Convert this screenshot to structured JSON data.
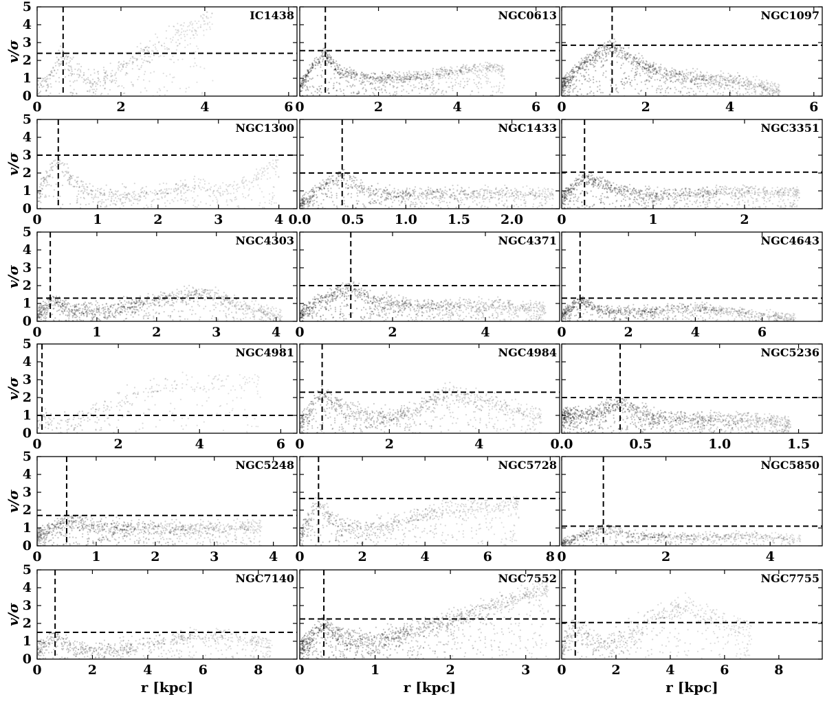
{
  "chart_data": {
    "type": "scatter",
    "ylabel": "v/σ",
    "xlabel": "r [kpc]",
    "point_color": "#000000",
    "line_color": "#000000",
    "y_range": [
      0,
      5
    ],
    "y_ticks": [
      0,
      1,
      2,
      3,
      4,
      5
    ],
    "panels": [
      {
        "title": "IC1438",
        "x_range": [
          0,
          6.2
        ],
        "x_ticks": [
          {
            "v": 0,
            "label": "0"
          },
          {
            "v": 2,
            "label": "2"
          },
          {
            "v": 4,
            "label": "4"
          },
          {
            "v": 6,
            "label": "6"
          }
        ],
        "vline": 0.62,
        "hline": 2.4,
        "profile": [
          [
            0,
            0.4
          ],
          [
            0.3,
            1.2
          ],
          [
            0.62,
            2.4
          ],
          [
            0.9,
            1.3
          ],
          [
            1.3,
            0.8
          ],
          [
            1.8,
            1.3
          ],
          [
            2.4,
            2.2
          ],
          [
            3,
            3
          ],
          [
            3.6,
            3.8
          ],
          [
            4.2,
            4.2
          ]
        ],
        "spread": 0.7,
        "n": 520,
        "density": 0.45
      },
      {
        "title": "NGC0613",
        "x_range": [
          0,
          6.6
        ],
        "x_ticks": [
          {
            "v": 0,
            "label": "0"
          },
          {
            "v": 2,
            "label": "2"
          },
          {
            "v": 4,
            "label": "4"
          },
          {
            "v": 6,
            "label": "6"
          }
        ],
        "vline": 0.65,
        "hline": 2.55,
        "profile": [
          [
            0,
            0.5
          ],
          [
            0.3,
            1.6
          ],
          [
            0.65,
            2.4
          ],
          [
            1,
            1.4
          ],
          [
            2,
            1
          ],
          [
            3,
            1.1
          ],
          [
            4,
            1.4
          ],
          [
            4.8,
            1.7
          ],
          [
            5.2,
            1.4
          ]
        ],
        "spread": 0.35,
        "n": 1100,
        "density": 0.8
      },
      {
        "title": "NGC1097",
        "x_range": [
          0,
          6.2
        ],
        "x_ticks": [
          {
            "v": 0,
            "label": "0"
          },
          {
            "v": 2,
            "label": "2"
          },
          {
            "v": 4,
            "label": "4"
          },
          {
            "v": 6,
            "label": "6"
          }
        ],
        "vline": 1.2,
        "hline": 2.85,
        "profile": [
          [
            0,
            0.6
          ],
          [
            0.5,
            1.8
          ],
          [
            1.2,
            2.8
          ],
          [
            1.8,
            1.9
          ],
          [
            2.5,
            1.2
          ],
          [
            3.5,
            1
          ],
          [
            4.4,
            0.8
          ],
          [
            5.2,
            0.3
          ]
        ],
        "spread": 0.45,
        "n": 1300,
        "density": 0.85
      },
      {
        "title": "NGC1300",
        "x_range": [
          0,
          4.3
        ],
        "x_ticks": [
          {
            "v": 0,
            "label": "0"
          },
          {
            "v": 1,
            "label": "1"
          },
          {
            "v": 2,
            "label": "2"
          },
          {
            "v": 3,
            "label": "3"
          },
          {
            "v": 4,
            "label": "4"
          }
        ],
        "vline": 0.35,
        "hline": 3.0,
        "profile": [
          [
            0,
            0.8
          ],
          [
            0.2,
            2
          ],
          [
            0.35,
            2.8
          ],
          [
            0.6,
            1.5
          ],
          [
            1,
            0.8
          ],
          [
            1.8,
            0.9
          ],
          [
            2.6,
            1.3
          ],
          [
            3.2,
            1
          ],
          [
            4,
            2.6
          ]
        ],
        "spread": 0.55,
        "n": 650,
        "density": 0.45
      },
      {
        "title": "NGC1433",
        "x_range": [
          0,
          2.45
        ],
        "x_ticks": [
          {
            "v": 0,
            "label": "0.0"
          },
          {
            "v": 0.5,
            "label": "0.5"
          },
          {
            "v": 1,
            "label": "1.0"
          },
          {
            "v": 1.5,
            "label": "1.5"
          },
          {
            "v": 2,
            "label": "2.0"
          }
        ],
        "vline": 0.4,
        "hline": 2.0,
        "profile": [
          [
            0,
            0.3
          ],
          [
            0.2,
            1.2
          ],
          [
            0.4,
            1.9
          ],
          [
            0.6,
            1.1
          ],
          [
            0.9,
            0.8
          ],
          [
            1.5,
            0.9
          ],
          [
            2,
            0.9
          ],
          [
            2.4,
            0.8
          ]
        ],
        "spread": 0.4,
        "n": 1000,
        "density": 0.75
      },
      {
        "title": "NGC3351",
        "x_range": [
          0,
          2.85
        ],
        "x_ticks": [
          {
            "v": 0,
            "label": "0"
          },
          {
            "v": 1,
            "label": "1"
          },
          {
            "v": 2,
            "label": "2"
          }
        ],
        "vline": 0.25,
        "hline": 2.05,
        "profile": [
          [
            0,
            0.6
          ],
          [
            0.25,
            1.8
          ],
          [
            0.6,
            1.1
          ],
          [
            1,
            0.8
          ],
          [
            1.5,
            0.9
          ],
          [
            2,
            1
          ],
          [
            2.6,
            0.9
          ]
        ],
        "spread": 0.4,
        "n": 1100,
        "density": 0.8
      },
      {
        "title": "NGC4303",
        "x_range": [
          0,
          4.35
        ],
        "x_ticks": [
          {
            "v": 0,
            "label": "0"
          },
          {
            "v": 1,
            "label": "1"
          },
          {
            "v": 2,
            "label": "2"
          },
          {
            "v": 3,
            "label": "3"
          },
          {
            "v": 4,
            "label": "4"
          }
        ],
        "vline": 0.22,
        "hline": 1.3,
        "profile": [
          [
            0,
            0.4
          ],
          [
            0.25,
            1.2
          ],
          [
            0.6,
            0.6
          ],
          [
            1.2,
            0.7
          ],
          [
            2,
            1.2
          ],
          [
            2.8,
            1.7
          ],
          [
            3.3,
            1
          ],
          [
            4.1,
            0.3
          ]
        ],
        "spread": 0.45,
        "n": 1100,
        "density": 0.75
      },
      {
        "title": "NGC4371",
        "x_range": [
          0,
          5.6
        ],
        "x_ticks": [
          {
            "v": 0,
            "label": "0"
          },
          {
            "v": 2,
            "label": "2"
          },
          {
            "v": 4,
            "label": "4"
          }
        ],
        "vline": 1.1,
        "hline": 2.0,
        "profile": [
          [
            0,
            0.4
          ],
          [
            0.5,
            1.3
          ],
          [
            1.1,
            1.9
          ],
          [
            1.6,
            1.2
          ],
          [
            2.5,
            0.9
          ],
          [
            3.5,
            0.9
          ],
          [
            4.5,
            0.9
          ],
          [
            5.3,
            0.7
          ]
        ],
        "spread": 0.45,
        "n": 1200,
        "density": 0.8
      },
      {
        "title": "NGC4643",
        "x_range": [
          0,
          7.8
        ],
        "x_ticks": [
          {
            "v": 0,
            "label": "0"
          },
          {
            "v": 2,
            "label": "2"
          },
          {
            "v": 4,
            "label": "4"
          },
          {
            "v": 6,
            "label": "6"
          }
        ],
        "vline": 0.55,
        "hline": 1.3,
        "profile": [
          [
            0,
            0.4
          ],
          [
            0.55,
            1.2
          ],
          [
            1.2,
            0.6
          ],
          [
            2.5,
            0.6
          ],
          [
            4,
            0.8
          ],
          [
            5,
            0.6
          ],
          [
            7,
            0.2
          ]
        ],
        "spread": 0.3,
        "n": 1000,
        "density": 0.8
      },
      {
        "title": "NGC4981",
        "x_range": [
          0,
          6.4
        ],
        "x_ticks": [
          {
            "v": 0,
            "label": "0"
          },
          {
            "v": 2,
            "label": "2"
          },
          {
            "v": 4,
            "label": "4"
          },
          {
            "v": 6,
            "label": "6"
          }
        ],
        "vline": 0.12,
        "hline": 1.0,
        "profile": [
          [
            0,
            0.6
          ],
          [
            0.15,
            0.9
          ],
          [
            0.5,
            0.5
          ],
          [
            1,
            0.8
          ],
          [
            1.8,
            1.6
          ],
          [
            2.5,
            2.3
          ],
          [
            3.2,
            2.8
          ],
          [
            4,
            2.7
          ],
          [
            5.5,
            2.9
          ]
        ],
        "spread": 0.7,
        "n": 330,
        "density": 0.4
      },
      {
        "title": "NGC4984",
        "x_range": [
          0,
          5.8
        ],
        "x_ticks": [
          {
            "v": 0,
            "label": "0"
          },
          {
            "v": 2,
            "label": "2"
          },
          {
            "v": 4,
            "label": "4"
          }
        ],
        "vline": 0.5,
        "hline": 2.3,
        "profile": [
          [
            0,
            0.6
          ],
          [
            0.5,
            2.2
          ],
          [
            1,
            1.3
          ],
          [
            2,
            0.9
          ],
          [
            2.6,
            1.3
          ],
          [
            3.3,
            2.3
          ],
          [
            4.2,
            1.8
          ],
          [
            5.4,
            0.9
          ]
        ],
        "spread": 0.55,
        "n": 1000,
        "density": 0.65
      },
      {
        "title": "NGC5236",
        "x_range": [
          0,
          1.65
        ],
        "x_ticks": [
          {
            "v": 0,
            "label": "0.0"
          },
          {
            "v": 0.5,
            "label": "0.5"
          },
          {
            "v": 1,
            "label": "1.0"
          },
          {
            "v": 1.5,
            "label": "1.5"
          }
        ],
        "vline": 0.37,
        "hline": 2.0,
        "profile": [
          [
            0,
            1
          ],
          [
            0.2,
            1.1
          ],
          [
            0.37,
            1.7
          ],
          [
            0.6,
            0.9
          ],
          [
            1,
            0.8
          ],
          [
            1.3,
            0.8
          ],
          [
            1.45,
            0.5
          ]
        ],
        "spread": 0.5,
        "n": 1300,
        "density": 0.85
      },
      {
        "title": "NGC5248",
        "x_range": [
          0,
          4.4
        ],
        "x_ticks": [
          {
            "v": 0,
            "label": "0"
          },
          {
            "v": 1,
            "label": "1"
          },
          {
            "v": 2,
            "label": "2"
          },
          {
            "v": 3,
            "label": "3"
          },
          {
            "v": 4,
            "label": "4"
          }
        ],
        "vline": 0.5,
        "hline": 1.7,
        "profile": [
          [
            0,
            0.6
          ],
          [
            0.5,
            1.4
          ],
          [
            1,
            1.1
          ],
          [
            2,
            1
          ],
          [
            3,
            1
          ],
          [
            3.8,
            1.1
          ]
        ],
        "spread": 0.45,
        "n": 1100,
        "density": 0.7
      },
      {
        "title": "NGC5728",
        "x_range": [
          0,
          8.3
        ],
        "x_ticks": [
          {
            "v": 0,
            "label": "0"
          },
          {
            "v": 2,
            "label": "2"
          },
          {
            "v": 4,
            "label": "4"
          },
          {
            "v": 6,
            "label": "6"
          },
          {
            "v": 8,
            "label": "8"
          }
        ],
        "vline": 0.6,
        "hline": 2.65,
        "profile": [
          [
            0,
            0.6
          ],
          [
            0.6,
            2.4
          ],
          [
            1.2,
            1.2
          ],
          [
            2,
            1
          ],
          [
            3,
            1.3
          ],
          [
            4,
            1.8
          ],
          [
            5,
            2.1
          ],
          [
            6,
            2.2
          ],
          [
            7,
            2.3
          ]
        ],
        "spread": 0.6,
        "n": 800,
        "density": 0.55
      },
      {
        "title": "NGC5850",
        "x_range": [
          0,
          5.0
        ],
        "x_ticks": [
          {
            "v": 0,
            "label": "0"
          },
          {
            "v": 2,
            "label": "2"
          },
          {
            "v": 4,
            "label": "4"
          }
        ],
        "vline": 0.8,
        "hline": 1.1,
        "profile": [
          [
            0,
            0.2
          ],
          [
            0.4,
            0.6
          ],
          [
            0.8,
            1
          ],
          [
            1.4,
            0.6
          ],
          [
            2.5,
            0.5
          ],
          [
            3.5,
            0.6
          ],
          [
            4.6,
            0.4
          ]
        ],
        "spread": 0.25,
        "n": 800,
        "density": 0.65
      },
      {
        "title": "NGC7140",
        "x_range": [
          0,
          9.4
        ],
        "x_ticks": [
          {
            "v": 0,
            "label": "0"
          },
          {
            "v": 2,
            "label": "2"
          },
          {
            "v": 4,
            "label": "4"
          },
          {
            "v": 6,
            "label": "6"
          },
          {
            "v": 8,
            "label": "8"
          }
        ],
        "vline": 0.65,
        "hline": 1.5,
        "profile": [
          [
            0,
            0.5
          ],
          [
            0.65,
            1.3
          ],
          [
            1.4,
            0.6
          ],
          [
            2.5,
            0.6
          ],
          [
            4,
            0.9
          ],
          [
            5.5,
            1.3
          ],
          [
            7,
            1.3
          ],
          [
            8.5,
            0.8
          ]
        ],
        "spread": 0.5,
        "n": 800,
        "density": 0.55
      },
      {
        "title": "NGC7552",
        "x_range": [
          0,
          3.45
        ],
        "x_ticks": [
          {
            "v": 0,
            "label": "0"
          },
          {
            "v": 1,
            "label": "1"
          },
          {
            "v": 2,
            "label": "2"
          },
          {
            "v": 3,
            "label": "3"
          }
        ],
        "vline": 0.32,
        "hline": 2.25,
        "profile": [
          [
            0,
            0.6
          ],
          [
            0.32,
            1.9
          ],
          [
            0.6,
            1.1
          ],
          [
            1,
            1.1
          ],
          [
            1.5,
            1.6
          ],
          [
            2,
            2.2
          ],
          [
            2.5,
            2.9
          ],
          [
            3,
            3.6
          ],
          [
            3.3,
            3.9
          ]
        ],
        "spread": 0.6,
        "n": 1400,
        "density": 0.8
      },
      {
        "title": "NGC7755",
        "x_range": [
          0,
          9.6
        ],
        "x_ticks": [
          {
            "v": 0,
            "label": "0"
          },
          {
            "v": 2,
            "label": "2"
          },
          {
            "v": 4,
            "label": "4"
          },
          {
            "v": 6,
            "label": "6"
          },
          {
            "v": 8,
            "label": "8"
          }
        ],
        "vline": 0.5,
        "hline": 2.05,
        "profile": [
          [
            0,
            0.6
          ],
          [
            0.5,
            1.9
          ],
          [
            1.2,
            1
          ],
          [
            1.8,
            0.9
          ],
          [
            2.6,
            1.6
          ],
          [
            3.5,
            2.5
          ],
          [
            4.5,
            3
          ],
          [
            5.5,
            2.3
          ],
          [
            7,
            1.6
          ]
        ],
        "spread": 0.8,
        "n": 650,
        "density": 0.45
      }
    ]
  }
}
